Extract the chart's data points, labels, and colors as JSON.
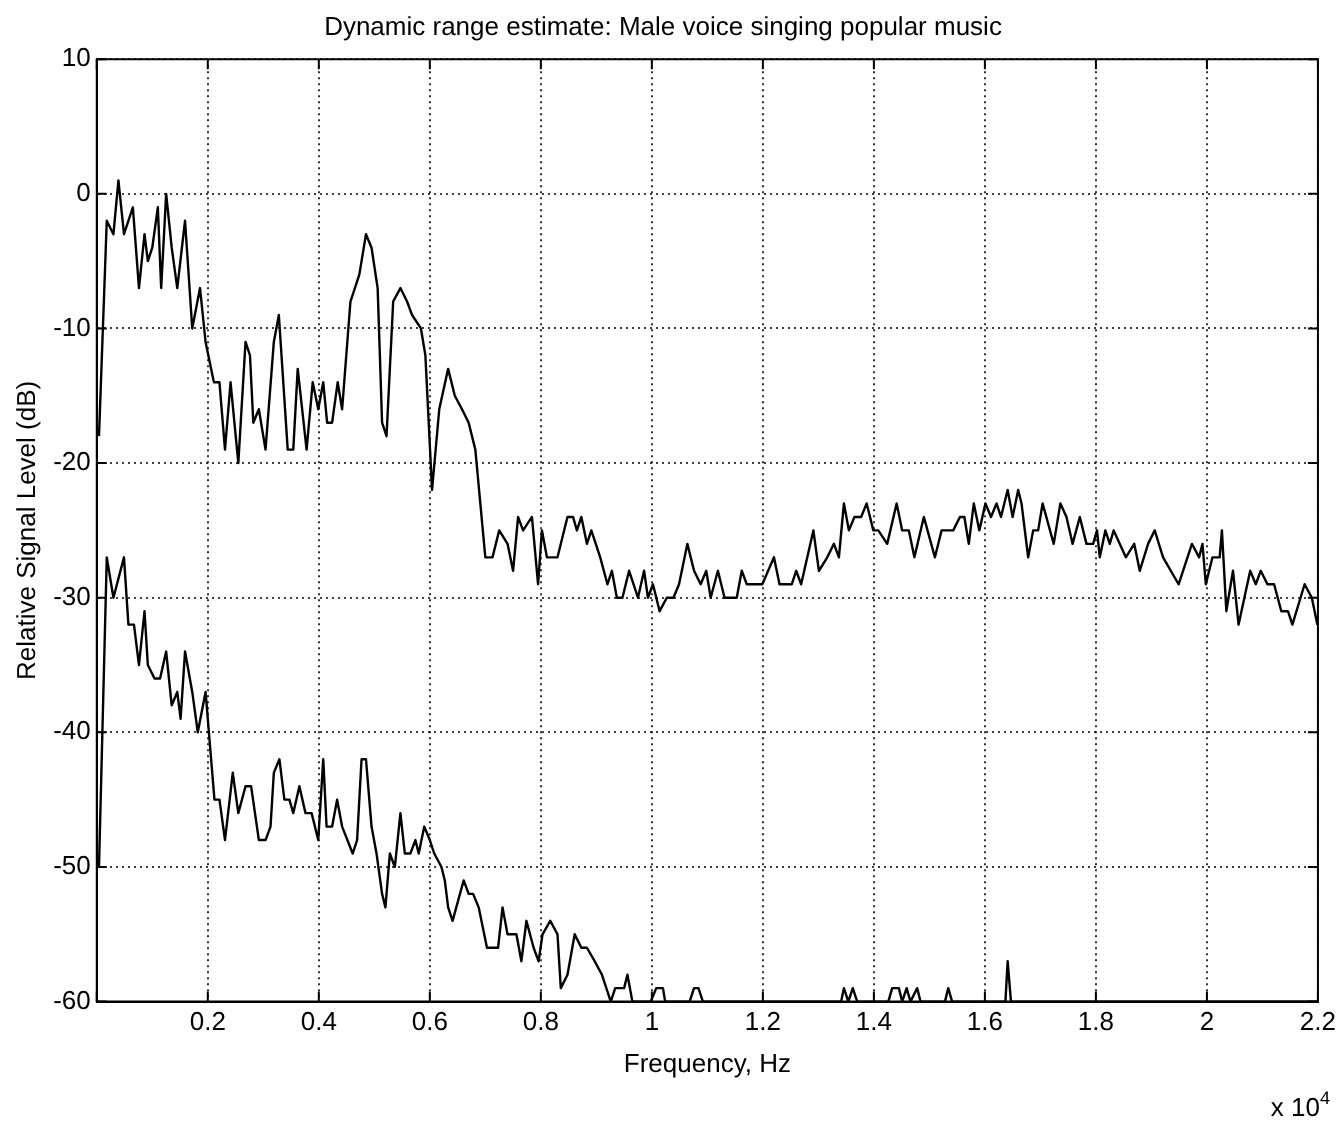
{
  "chart_data": {
    "type": "line",
    "title": "Dynamic range estimate: Male voice singing popular music",
    "xlabel": "Frequency, Hz",
    "ylabel": "Relative Signal Level (dB)",
    "annotations": [
      "x 10$^{4}$"
    ],
    "xlim": [
      0,
      2.2
    ],
    "ylim": [
      -60,
      10
    ],
    "xticks": [
      {
        "value": 0,
        "label": null
      },
      0.2,
      0.4,
      0.6,
      0.8,
      1,
      1.2,
      1.4,
      1.6,
      1.8,
      2,
      2.2
    ],
    "yticks": [
      -60,
      -50,
      -40,
      -30,
      -20,
      -10,
      0,
      10
    ],
    "grid": true,
    "legend": false,
    "marker": "none",
    "line_style": "solid",
    "series": [
      {
        "color": "#000000",
        "x": [
          0.004,
          0.018,
          0.03,
          0.039,
          0.049,
          0.065,
          0.076,
          0.086,
          0.092,
          0.1,
          0.11,
          0.116,
          0.125,
          0.135,
          0.145,
          0.159,
          0.172,
          0.186,
          0.196,
          0.211,
          0.221,
          0.231,
          0.241,
          0.255,
          0.268,
          0.276,
          0.282,
          0.292,
          0.304,
          0.319,
          0.328,
          0.344,
          0.354,
          0.362,
          0.378,
          0.389,
          0.399,
          0.408,
          0.415,
          0.424,
          0.434,
          0.442,
          0.457,
          0.473,
          0.485,
          0.495,
          0.506,
          0.514,
          0.522,
          0.534,
          0.547,
          0.559,
          0.568,
          0.584,
          0.592,
          0.604,
          0.617,
          0.633,
          0.645,
          0.658,
          0.67,
          0.682,
          0.7,
          0.713,
          0.725,
          0.74,
          0.75,
          0.759,
          0.768,
          0.784,
          0.795,
          0.802,
          0.811,
          0.83,
          0.848,
          0.858,
          0.865,
          0.873,
          0.883,
          0.891,
          0.907,
          0.92,
          0.928,
          0.937,
          0.947,
          0.959,
          0.975,
          0.986,
          0.993,
          1.002,
          1.014,
          1.027,
          1.039,
          1.049,
          1.064,
          1.076,
          1.088,
          1.098,
          1.106,
          1.119,
          1.131,
          1.153,
          1.162,
          1.171,
          1.199,
          1.22,
          1.23,
          1.252,
          1.26,
          1.269,
          1.291,
          1.301,
          1.316,
          1.328,
          1.337,
          1.346,
          1.355,
          1.365,
          1.377,
          1.387,
          1.399,
          1.408,
          1.424,
          1.441,
          1.451,
          1.463,
          1.473,
          1.49,
          1.51,
          1.522,
          1.543,
          1.555,
          1.563,
          1.571,
          1.58,
          1.59,
          1.601,
          1.611,
          1.621,
          1.629,
          1.641,
          1.65,
          1.66,
          1.666,
          1.678,
          1.687,
          1.696,
          1.704,
          1.724,
          1.736,
          1.747,
          1.758,
          1.771,
          1.783,
          1.795,
          1.802,
          1.807,
          1.817,
          1.825,
          1.832,
          1.854,
          1.869,
          1.879,
          1.894,
          1.906,
          1.921,
          1.949,
          1.973,
          1.986,
          1.992,
          1.998,
          2.01,
          2.023,
          2.027,
          2.035,
          2.047,
          2.057,
          2.078,
          2.088,
          2.097,
          2.109,
          2.121,
          2.134,
          2.146,
          2.154,
          2.176,
          2.189,
          2.199
        ],
        "values": [
          -18,
          -2,
          -3,
          1,
          -3,
          -1,
          -7,
          -3,
          -5,
          -4,
          -1,
          -7,
          0,
          -4,
          -7,
          -2,
          -10,
          -7,
          -11,
          -14,
          -14,
          -19,
          -14,
          -20,
          -11,
          -12,
          -17,
          -16,
          -19,
          -11,
          -9,
          -19,
          -19,
          -13,
          -19,
          -14,
          -16,
          -14,
          -17,
          -17,
          -14,
          -16,
          -8,
          -6,
          -3,
          -4,
          -7,
          -17,
          -18,
          -8,
          -7,
          -8,
          -9,
          -10,
          -12,
          -22,
          -16,
          -13,
          -15,
          -16,
          -17,
          -19,
          -27,
          -27,
          -25,
          -26,
          -28,
          -24,
          -25,
          -24,
          -29,
          -25,
          -27,
          -27,
          -24,
          -24,
          -25,
          -24,
          -26,
          -25,
          -27,
          -29,
          -28,
          -30,
          -30,
          -28,
          -30,
          -28,
          -30,
          -29,
          -31,
          -30,
          -30,
          -29,
          -26,
          -28,
          -29,
          -28,
          -30,
          -28,
          -30,
          -30,
          -28,
          -29,
          -29,
          -27,
          -29,
          -29,
          -28,
          -29,
          -25,
          -28,
          -27,
          -26,
          -27,
          -23,
          -25,
          -24,
          -24,
          -23,
          -25,
          -25,
          -26,
          -23,
          -25,
          -25,
          -27,
          -24,
          -27,
          -25,
          -25,
          -24,
          -24,
          -26,
          -23,
          -25,
          -23,
          -24,
          -23,
          -24,
          -22,
          -24,
          -22,
          -23,
          -27,
          -25,
          -25,
          -23,
          -26,
          -23,
          -24,
          -26,
          -24,
          -26,
          -26,
          -25,
          -27,
          -25,
          -26,
          -25,
          -27,
          -26,
          -28,
          -26,
          -25,
          -27,
          -29,
          -26,
          -27,
          -26,
          -29,
          -27,
          -27,
          -25,
          -31,
          -28,
          -32,
          -28,
          -29,
          -28,
          -29,
          -29,
          -31,
          -31,
          -32,
          -29,
          -30,
          -32
        ]
      },
      {
        "color": "#000000",
        "x": [
          0.004,
          0.018,
          0.03,
          0.049,
          0.057,
          0.067,
          0.076,
          0.086,
          0.092,
          0.104,
          0.114,
          0.125,
          0.135,
          0.145,
          0.151,
          0.159,
          0.172,
          0.182,
          0.196,
          0.202,
          0.212,
          0.221,
          0.231,
          0.245,
          0.255,
          0.268,
          0.278,
          0.292,
          0.304,
          0.313,
          0.319,
          0.329,
          0.338,
          0.347,
          0.354,
          0.365,
          0.376,
          0.387,
          0.399,
          0.408,
          0.414,
          0.424,
          0.433,
          0.442,
          0.461,
          0.469,
          0.477,
          0.485,
          0.495,
          0.504,
          0.514,
          0.52,
          0.528,
          0.537,
          0.547,
          0.555,
          0.565,
          0.574,
          0.58,
          0.59,
          0.6,
          0.608,
          0.621,
          0.627,
          0.633,
          0.641,
          0.661,
          0.67,
          0.678,
          0.688,
          0.703,
          0.723,
          0.731,
          0.74,
          0.756,
          0.765,
          0.774,
          0.787,
          0.796,
          0.803,
          0.817,
          0.83,
          0.836,
          0.848,
          0.861,
          0.873,
          0.883,
          0.897,
          0.91,
          0.926,
          0.934,
          0.95,
          0.956,
          0.965,
          0.998,
          1.008,
          1.02,
          1.024,
          1.068,
          1.076,
          1.084,
          1.092,
          1.341,
          1.346,
          1.354,
          1.362,
          1.37,
          1.426,
          1.433,
          1.445,
          1.451,
          1.459,
          1.466,
          1.478,
          1.484,
          1.528,
          1.534,
          1.541,
          1.637,
          1.641,
          1.647,
          2.2
        ],
        "values": [
          -50,
          -27,
          -30,
          -27,
          -32,
          -32,
          -35,
          -31,
          -35,
          -36,
          -36,
          -34,
          -38,
          -37,
          -39,
          -34,
          -37,
          -40,
          -37,
          -40,
          -45,
          -45,
          -48,
          -43,
          -46,
          -44,
          -44,
          -48,
          -48,
          -47,
          -43,
          -42,
          -45,
          -45,
          -46,
          -44,
          -46,
          -46,
          -48,
          -42,
          -47,
          -47,
          -45,
          -47,
          -49,
          -48,
          -42,
          -42,
          -47,
          -49,
          -52,
          -53,
          -49,
          -50,
          -46,
          -49,
          -49,
          -48,
          -49,
          -47,
          -48,
          -49,
          -50,
          -51,
          -53,
          -54,
          -51,
          -52,
          -52,
          -53,
          -56,
          -56,
          -53,
          -55,
          -55,
          -57,
          -54,
          -56,
          -57,
          -55,
          -54,
          -55,
          -59,
          -58,
          -55,
          -56,
          -56,
          -57,
          -58,
          -60,
          -59,
          -59,
          -58,
          -60,
          -60,
          -59,
          -59,
          -60,
          -60,
          -59,
          -59,
          -60,
          -60,
          -59,
          -60,
          -59,
          -60,
          -60,
          -59,
          -59,
          -60,
          -59,
          -60,
          -59,
          -60,
          -60,
          -59,
          -60,
          -60,
          -57,
          -60,
          -60
        ]
      }
    ]
  }
}
